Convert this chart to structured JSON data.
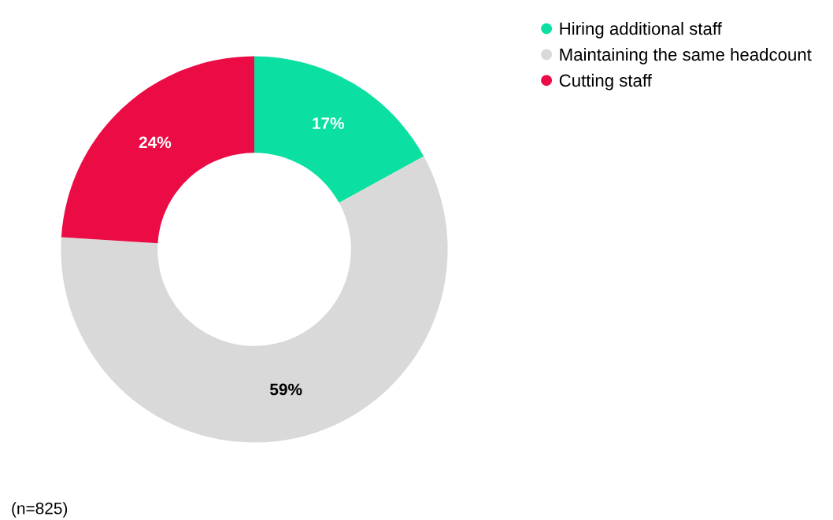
{
  "chart_data": {
    "type": "donut",
    "categories": [
      "Hiring additional staff",
      "Maintaining the same headcount",
      "Cutting staff"
    ],
    "values": [
      17,
      59,
      24
    ],
    "colors": [
      "#0be0a2",
      "#d9d9d9",
      "#eb0c45"
    ],
    "value_labels": [
      "17%",
      "59%",
      "24%"
    ],
    "legend": "top right",
    "annotations": [
      "(n=825)"
    ]
  }
}
